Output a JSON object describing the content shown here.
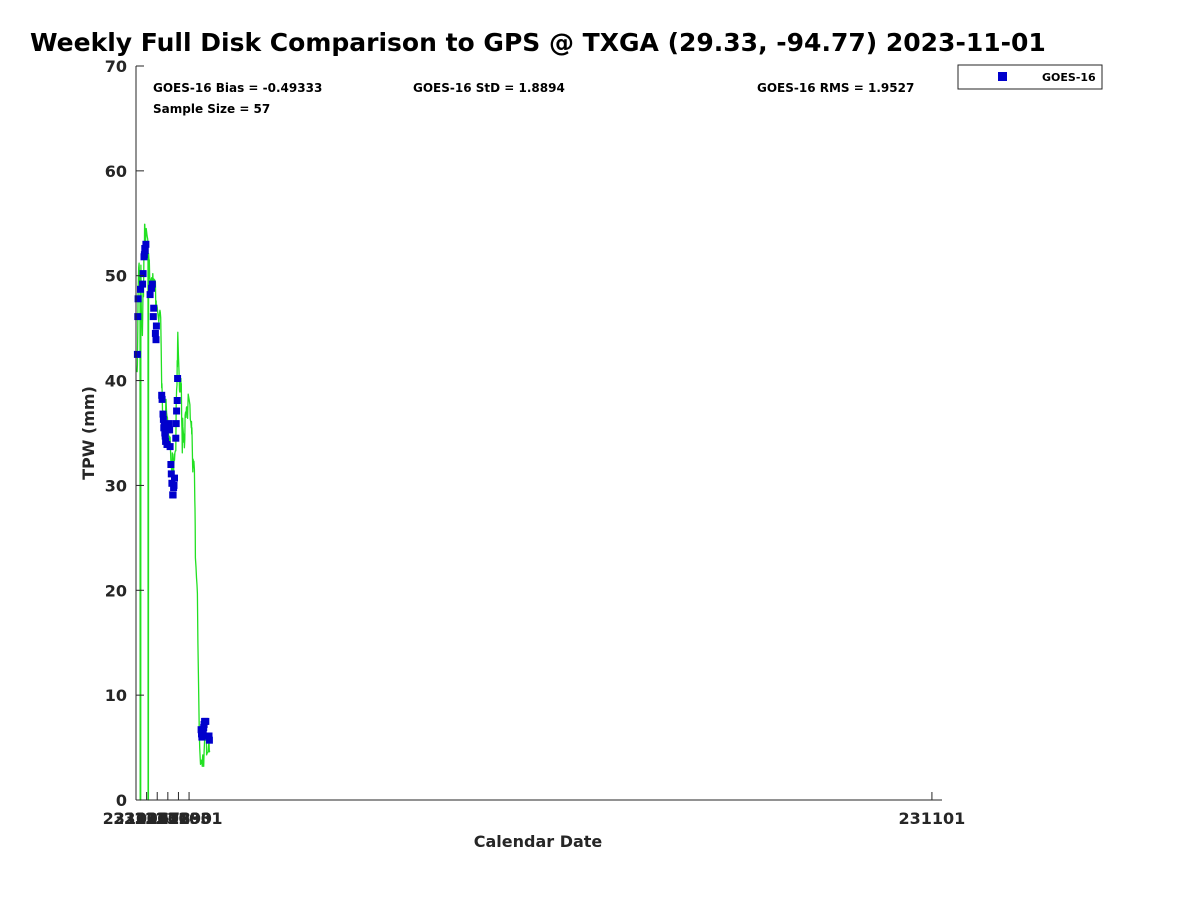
{
  "chart_data": {
    "type": "line",
    "title": "Weekly Full Disk Comparison to GPS @ TXGA (29.33, -94.77) 2023-11-01",
    "xlabel": "Calendar Date",
    "ylabel": "TPW (mm)",
    "xlim": [
      231026.0,
      231101.95
    ],
    "ylim": [
      0,
      70
    ],
    "y_ticks": [
      0,
      10,
      20,
      30,
      40,
      50,
      60,
      70
    ],
    "x_ticks": [
      {
        "value": 231026,
        "label": "231026"
      },
      {
        "value": 231027,
        "label": "231027"
      },
      {
        "value": 231028,
        "label": "231028"
      },
      {
        "value": 231029,
        "label": "231029"
      },
      {
        "value": 231030,
        "label": "231030"
      },
      {
        "value": 231031,
        "label": "231031"
      },
      {
        "value": 231101,
        "label": "231101"
      }
    ],
    "grid": false,
    "legend_position": "top-right, outside plot",
    "stats": {
      "bias": "GOES-16 Bias = -0.49333",
      "std": "GOES-16 StD = 1.8894",
      "rms": "GOES-16 RMS = 1.9527",
      "sample_size": "Sample Size = 57"
    },
    "series": [
      {
        "name": "GOES-16",
        "kind": "scatter",
        "marker": "square",
        "color": "#0000cc",
        "points": [
          [
            0.13,
            42.5
          ],
          [
            0.17,
            46.1
          ],
          [
            0.2,
            47.8
          ],
          [
            0.42,
            48.7
          ],
          [
            0.62,
            49.2
          ],
          [
            0.67,
            50.2
          ],
          [
            0.75,
            51.8
          ],
          [
            0.79,
            52.0
          ],
          [
            0.83,
            52.6
          ],
          [
            0.87,
            52.4
          ],
          [
            0.93,
            53.0
          ],
          [
            1.33,
            48.2
          ],
          [
            1.46,
            48.8
          ],
          [
            1.54,
            49.2
          ],
          [
            1.63,
            46.1
          ],
          [
            1.67,
            46.9
          ],
          [
            1.83,
            44.5
          ],
          [
            1.88,
            43.9
          ],
          [
            1.92,
            45.2
          ],
          [
            2.42,
            38.6
          ],
          [
            2.46,
            38.2
          ],
          [
            2.54,
            36.8
          ],
          [
            2.58,
            36.3
          ],
          [
            2.62,
            35.5
          ],
          [
            2.67,
            35.7
          ],
          [
            2.71,
            35.0
          ],
          [
            2.75,
            34.7
          ],
          [
            2.79,
            34.2
          ],
          [
            2.92,
            33.9
          ],
          [
            3.13,
            35.9
          ],
          [
            3.17,
            35.3
          ],
          [
            3.21,
            33.7
          ],
          [
            3.29,
            32.0
          ],
          [
            3.33,
            31.1
          ],
          [
            3.38,
            30.2
          ],
          [
            3.46,
            29.1
          ],
          [
            3.5,
            29.1
          ],
          [
            3.54,
            29.8
          ],
          [
            3.58,
            30.0
          ],
          [
            3.63,
            30.7
          ],
          [
            3.75,
            34.5
          ],
          [
            3.79,
            35.9
          ],
          [
            3.83,
            37.1
          ],
          [
            3.88,
            38.1
          ],
          [
            3.92,
            40.2
          ],
          [
            6.13,
            6.7
          ],
          [
            6.17,
            6.3
          ],
          [
            6.21,
            6.0
          ],
          [
            6.25,
            6.1
          ],
          [
            6.29,
            6.4
          ],
          [
            6.33,
            6.7
          ],
          [
            6.38,
            6.9
          ],
          [
            6.42,
            7.2
          ],
          [
            6.46,
            7.5
          ],
          [
            6.58,
            7.5
          ],
          [
            6.88,
            6.1
          ],
          [
            6.92,
            5.7
          ]
        ]
      },
      {
        "name": "GPS",
        "kind": "line",
        "color": "#22e022",
        "points": [
          [
            0.1,
            40.8
          ],
          [
            0.13,
            41.5
          ],
          [
            0.17,
            45.0
          ],
          [
            0.2,
            48.5
          ],
          [
            0.25,
            50.8
          ],
          [
            0.29,
            51.2
          ],
          [
            0.33,
            49.8
          ],
          [
            0.36,
            48.8
          ],
          [
            0.38,
            50.3
          ],
          [
            0.4,
            0
          ],
          [
            0.44,
            0
          ],
          [
            0.46,
            51.0
          ],
          [
            0.5,
            46.9
          ],
          [
            0.53,
            45.3
          ],
          [
            0.56,
            46.2
          ],
          [
            0.6,
            44.3
          ],
          [
            0.63,
            46.1
          ],
          [
            0.67,
            49.4
          ],
          [
            0.71,
            48.0
          ],
          [
            0.75,
            52.8
          ],
          [
            0.79,
            52.6
          ],
          [
            0.81,
            54.9
          ],
          [
            0.83,
            54.9
          ],
          [
            0.86,
            53.6
          ],
          [
            0.88,
            54.2
          ],
          [
            0.9,
            53.2
          ],
          [
            0.93,
            54.3
          ],
          [
            0.96,
            54.5
          ],
          [
            1.0,
            54.2
          ],
          [
            1.05,
            53.8
          ],
          [
            1.1,
            53.5
          ],
          [
            1.13,
            53.0
          ],
          [
            1.14,
            0
          ],
          [
            1.17,
            0
          ],
          [
            1.19,
            52.1
          ],
          [
            1.23,
            51.3
          ],
          [
            1.25,
            51.5
          ],
          [
            1.29,
            49.8
          ],
          [
            1.33,
            49.6
          ],
          [
            1.35,
            48.2
          ],
          [
            1.38,
            48.3
          ],
          [
            1.42,
            49.3
          ],
          [
            1.46,
            49.8
          ],
          [
            1.5,
            49.2
          ],
          [
            1.54,
            48.9
          ],
          [
            1.58,
            50.2
          ],
          [
            1.63,
            49.0
          ],
          [
            1.67,
            49.7
          ],
          [
            1.75,
            49.6
          ],
          [
            1.83,
            49.4
          ],
          [
            1.87,
            47.0
          ],
          [
            1.9,
            47.6
          ],
          [
            1.92,
            46.8
          ],
          [
            1.96,
            47.2
          ],
          [
            2.0,
            47.0
          ],
          [
            2.1,
            46.0
          ],
          [
            2.15,
            45.6
          ],
          [
            2.2,
            46.3
          ],
          [
            2.25,
            46.7
          ],
          [
            2.29,
            46.5
          ],
          [
            2.33,
            46.0
          ],
          [
            2.37,
            43.0
          ],
          [
            2.42,
            39.3
          ],
          [
            2.44,
            39.7
          ],
          [
            2.46,
            39.1
          ],
          [
            2.5,
            37.1
          ],
          [
            2.54,
            35.6
          ],
          [
            2.58,
            37.1
          ],
          [
            2.62,
            34.5
          ],
          [
            2.67,
            35.2
          ],
          [
            2.71,
            34.2
          ],
          [
            2.75,
            35.5
          ],
          [
            2.79,
            35.1
          ],
          [
            2.81,
            38.2
          ],
          [
            2.83,
            38.2
          ],
          [
            2.88,
            36.9
          ],
          [
            2.92,
            36.6
          ],
          [
            2.96,
            36.5
          ],
          [
            3.0,
            36.0
          ],
          [
            3.05,
            35.0
          ],
          [
            3.1,
            34.2
          ],
          [
            3.13,
            34.7
          ],
          [
            3.17,
            33.9
          ],
          [
            3.21,
            34.6
          ],
          [
            3.25,
            33.4
          ],
          [
            3.29,
            32.2
          ],
          [
            3.33,
            31.8
          ],
          [
            3.38,
            31.0
          ],
          [
            3.42,
            33.1
          ],
          [
            3.46,
            32.6
          ],
          [
            3.5,
            31.0
          ],
          [
            3.54,
            31.3
          ],
          [
            3.58,
            32.5
          ],
          [
            3.6,
            33.0
          ],
          [
            3.63,
            32.4
          ],
          [
            3.67,
            33.1
          ],
          [
            3.71,
            33.3
          ],
          [
            3.75,
            33.3
          ],
          [
            3.79,
            37.8
          ],
          [
            3.83,
            39.1
          ],
          [
            3.86,
            39.6
          ],
          [
            3.88,
            41.9
          ],
          [
            3.9,
            41.3
          ],
          [
            3.92,
            43.5
          ],
          [
            3.94,
            44.6
          ],
          [
            4.0,
            42.5
          ],
          [
            4.05,
            40.9
          ],
          [
            4.1,
            39.0
          ],
          [
            4.13,
            38.9
          ],
          [
            4.17,
            39.3
          ],
          [
            4.19,
            40.0
          ],
          [
            4.21,
            39.5
          ],
          [
            4.23,
            40.2
          ],
          [
            4.25,
            38.9
          ],
          [
            4.27,
            39.7
          ],
          [
            4.31,
            36.2
          ],
          [
            4.33,
            35.2
          ],
          [
            4.36,
            33.1
          ],
          [
            4.38,
            34.6
          ],
          [
            4.4,
            36.4
          ],
          [
            4.42,
            35.6
          ],
          [
            4.46,
            35.1
          ],
          [
            4.5,
            34.1
          ],
          [
            4.52,
            34.9
          ],
          [
            4.54,
            34.4
          ],
          [
            4.56,
            33.6
          ],
          [
            4.6,
            34.4
          ],
          [
            4.63,
            36.7
          ],
          [
            4.67,
            37.0
          ],
          [
            4.71,
            36.5
          ],
          [
            4.75,
            37.4
          ],
          [
            4.79,
            37.5
          ],
          [
            4.83,
            37.2
          ],
          [
            4.86,
            36.4
          ],
          [
            4.88,
            37.2
          ],
          [
            4.92,
            38.7
          ],
          [
            5.0,
            38.2
          ],
          [
            5.08,
            37.7
          ],
          [
            5.12,
            36.3
          ],
          [
            5.17,
            36.0
          ],
          [
            5.21,
            35.5
          ],
          [
            5.23,
            36.1
          ],
          [
            5.25,
            34.9
          ],
          [
            5.27,
            35.5
          ],
          [
            5.29,
            34.6
          ],
          [
            5.33,
            32.0
          ],
          [
            5.35,
            31.3
          ],
          [
            5.38,
            32.5
          ],
          [
            5.42,
            31.7
          ],
          [
            5.46,
            32.3
          ],
          [
            5.5,
            31.5
          ],
          [
            5.54,
            28.6
          ],
          [
            5.56,
            27.8
          ],
          [
            5.58,
            26.2
          ],
          [
            5.6,
            23.1
          ],
          [
            5.65,
            22.2
          ],
          [
            5.7,
            21.2
          ],
          [
            5.75,
            20.5
          ],
          [
            5.79,
            19.7
          ],
          [
            5.83,
            15.0
          ],
          [
            5.88,
            12.0
          ],
          [
            5.92,
            9.5
          ],
          [
            5.96,
            7.0
          ],
          [
            6.0,
            5.0
          ],
          [
            6.05,
            4.0
          ],
          [
            6.08,
            3.4
          ],
          [
            6.1,
            3.8
          ],
          [
            6.13,
            3.5
          ],
          [
            6.17,
            3.8
          ],
          [
            6.21,
            3.5
          ],
          [
            6.25,
            3.2
          ],
          [
            6.27,
            4.0
          ],
          [
            6.29,
            4.3
          ],
          [
            6.33,
            4.2
          ],
          [
            6.38,
            3.2
          ],
          [
            6.42,
            4.6
          ],
          [
            6.46,
            5.7
          ],
          [
            6.5,
            6.1
          ],
          [
            6.54,
            6.0
          ],
          [
            6.58,
            5.7
          ],
          [
            6.6,
            6.2
          ],
          [
            6.63,
            6.1
          ],
          [
            6.65,
            4.3
          ],
          [
            6.71,
            4.5
          ],
          [
            6.75,
            4.5
          ],
          [
            6.79,
            4.6
          ],
          [
            6.83,
            5.1
          ],
          [
            6.88,
            5.6
          ],
          [
            6.9,
            4.9
          ],
          [
            6.92,
            4.6
          ],
          [
            6.95,
            4.7
          ]
        ]
      }
    ]
  },
  "legend": {
    "label": "GOES-16",
    "marker_color": "#0000cc"
  }
}
